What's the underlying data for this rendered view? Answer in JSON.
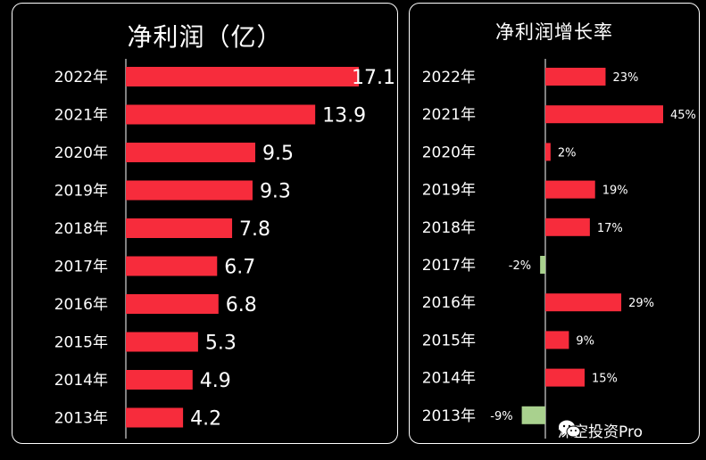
{
  "colors": {
    "positive": "#f72c3c",
    "negative": "#a9d18e",
    "background": "#000000",
    "text": "#ffffff"
  },
  "watermark": {
    "text": "深空投资Pro",
    "icon": "wechat-icon"
  },
  "chart_data": [
    {
      "type": "bar",
      "orientation": "horizontal",
      "title": "净利润（亿）",
      "categories": [
        "2022年",
        "2021年",
        "2020年",
        "2019年",
        "2018年",
        "2017年",
        "2016年",
        "2015年",
        "2014年",
        "2013年"
      ],
      "values": [
        17.1,
        13.9,
        9.5,
        9.3,
        7.8,
        6.7,
        6.8,
        5.3,
        4.9,
        4.2
      ],
      "value_labels": [
        "17.1",
        "13.9",
        "9.5",
        "9.3",
        "7.8",
        "6.7",
        "6.8",
        "5.3",
        "4.9",
        "4.2"
      ],
      "xlim": [
        0,
        17.1
      ],
      "grid": false
    },
    {
      "type": "bar",
      "orientation": "horizontal",
      "title": "净利润增长率",
      "categories": [
        "2022年",
        "2021年",
        "2020年",
        "2019年",
        "2018年",
        "2017年",
        "2016年",
        "2015年",
        "2014年",
        "2013年"
      ],
      "values": [
        23,
        45,
        2,
        19,
        17,
        -2,
        29,
        9,
        15,
        -9
      ],
      "value_labels": [
        "23%",
        "45%",
        "2%",
        "19%",
        "17%",
        "-2%",
        "29%",
        "9%",
        "15%",
        "-9%"
      ],
      "grid": false
    }
  ]
}
